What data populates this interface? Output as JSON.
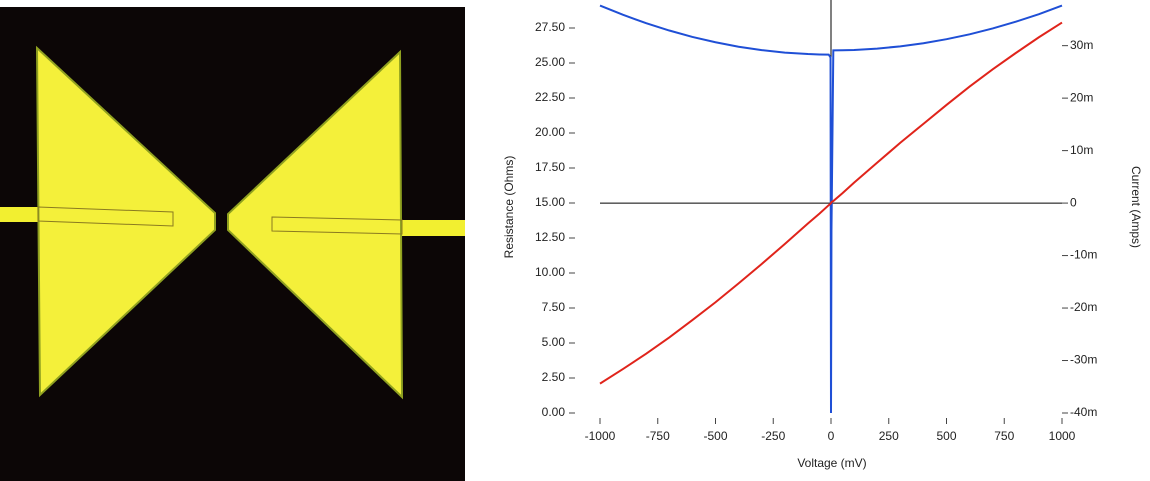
{
  "chart_data": {
    "type": "line",
    "xlabel": "Voltage (mV)",
    "ylabel": "Resistance (Ohms)",
    "y2label": "Current (Amps)",
    "x": [
      -1000,
      -900,
      -800,
      -700,
      -600,
      -500,
      -400,
      -300,
      -200,
      -100,
      -50,
      -10,
      -2,
      0,
      2,
      10,
      50,
      100,
      200,
      300,
      400,
      500,
      600,
      700,
      800,
      900,
      1000
    ],
    "series": [
      {
        "color": "#1f4fd6",
        "axis": "y",
        "values": [
          29.1,
          28.44,
          27.84,
          27.32,
          26.86,
          26.48,
          26.16,
          25.92,
          25.74,
          25.64,
          25.61,
          25.6,
          25.4,
          0,
          13.0,
          25.9,
          25.91,
          25.93,
          26.03,
          26.19,
          26.41,
          26.7,
          27.05,
          27.47,
          27.95,
          28.49,
          29.1
        ]
      },
      {
        "color": "#e0241b",
        "axis": "y2",
        "values": [
          -0.0344,
          -0.0316,
          -0.0287,
          -0.0256,
          -0.0223,
          -0.0189,
          -0.0153,
          -0.0116,
          -0.0078,
          -0.0039,
          -0.002,
          -0.0004,
          -0.0001,
          0,
          0.0002,
          0.0004,
          0.0019,
          0.0039,
          0.0077,
          0.0115,
          0.0151,
          0.0187,
          0.0222,
          0.0255,
          0.0286,
          0.0316,
          0.0344
        ]
      }
    ],
    "xlim": [
      -1000,
      1000
    ],
    "xticks": [
      -1000,
      -750,
      -500,
      -250,
      0,
      250,
      500,
      750,
      1000
    ],
    "ylim": [
      0,
      29.5
    ],
    "yticks": [
      {
        "value": 0,
        "label": "0.00"
      },
      {
        "value": 2.5,
        "label": "2.50"
      },
      {
        "value": 5,
        "label": "5.00"
      },
      {
        "value": 7.5,
        "label": "7.50"
      },
      {
        "value": 10,
        "label": "10.00"
      },
      {
        "value": 12.5,
        "label": "12.50"
      },
      {
        "value": 15,
        "label": "15.00"
      },
      {
        "value": 17.5,
        "label": "17.50"
      },
      {
        "value": 20,
        "label": "20.00"
      },
      {
        "value": 22.5,
        "label": "22.50"
      },
      {
        "value": 25,
        "label": "25.00"
      },
      {
        "value": 27.5,
        "label": "27.50"
      }
    ],
    "y2lim": [
      -0.04,
      0.0387
    ],
    "y2ticks": [
      {
        "value": -0.04,
        "label": "-40m"
      },
      {
        "value": -0.03,
        "label": "-30m"
      },
      {
        "value": -0.02,
        "label": "-20m"
      },
      {
        "value": -0.01,
        "label": "-10m"
      },
      0,
      {
        "value": 0.01,
        "label": "10m"
      },
      {
        "value": 0.02,
        "label": "20m"
      },
      {
        "value": 0.03,
        "label": "30m"
      }
    ],
    "crosshair": true
  }
}
